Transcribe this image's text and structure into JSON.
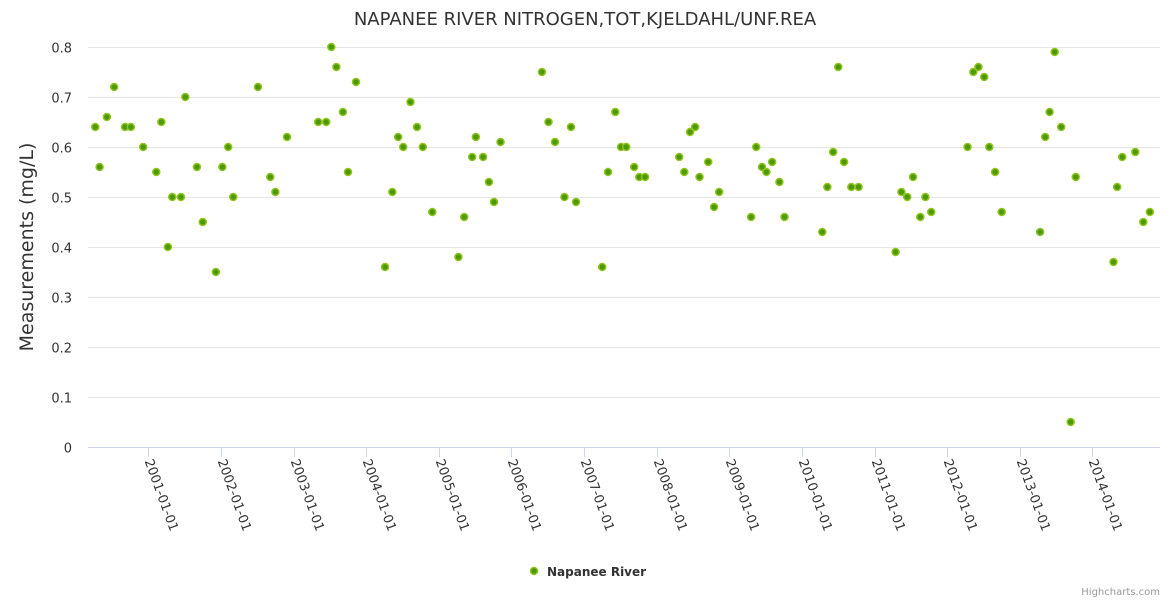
{
  "chart_data": {
    "type": "scatter",
    "title": "NAPANEE RIVER NITROGEN,TOT,KJELDAHL/UNF.REA",
    "xlabel": "",
    "ylabel": "Measurements (mg/L)",
    "xlim": [
      2000.17,
      2014.93
    ],
    "ylim": [
      0,
      0.8
    ],
    "yticks": [
      0,
      0.1,
      0.2,
      0.3,
      0.4,
      0.5,
      0.6,
      0.7,
      0.8
    ],
    "ytick_labels": [
      "0",
      "0.1",
      "0.2",
      "0.3",
      "0.4",
      "0.5",
      "0.6",
      "0.7",
      "0.8"
    ],
    "xticks": [
      2001,
      2002,
      2003,
      2004,
      2005,
      2006,
      2007,
      2008,
      2009,
      2010,
      2011,
      2012,
      2013,
      2014
    ],
    "xtick_labels": [
      "2001-01-01",
      "2002-01-01",
      "2003-01-01",
      "2004-01-01",
      "2005-01-01",
      "2006-01-01",
      "2007-01-01",
      "2008-01-01",
      "2009-01-01",
      "2010-01-01",
      "2011-01-01",
      "2012-01-01",
      "2013-01-01",
      "2014-01-01"
    ],
    "grid": true,
    "legend_position": "bottom-center",
    "series": [
      {
        "name": "Napanee River",
        "color": "#7cb5ec",
        "marker_fill": "#4c9a00",
        "marker_line": "#90c41f",
        "points": [
          [
            2000.27,
            0.64
          ],
          [
            2000.33,
            0.56
          ],
          [
            2000.43,
            0.66
          ],
          [
            2000.53,
            0.72
          ],
          [
            2000.68,
            0.64
          ],
          [
            2000.76,
            0.64
          ],
          [
            2000.93,
            0.6
          ],
          [
            2001.11,
            0.55
          ],
          [
            2001.18,
            0.65
          ],
          [
            2001.27,
            0.4
          ],
          [
            2001.33,
            0.5
          ],
          [
            2001.45,
            0.5
          ],
          [
            2001.51,
            0.7
          ],
          [
            2001.67,
            0.56
          ],
          [
            2001.75,
            0.45
          ],
          [
            2001.93,
            0.35
          ],
          [
            2002.02,
            0.56
          ],
          [
            2002.1,
            0.6
          ],
          [
            2002.17,
            0.5
          ],
          [
            2002.51,
            0.72
          ],
          [
            2002.68,
            0.54
          ],
          [
            2002.75,
            0.51
          ],
          [
            2002.91,
            0.62
          ],
          [
            2003.34,
            0.65
          ],
          [
            2003.45,
            0.65
          ],
          [
            2003.52,
            0.8
          ],
          [
            2003.59,
            0.76
          ],
          [
            2003.68,
            0.67
          ],
          [
            2003.75,
            0.55
          ],
          [
            2003.86,
            0.73
          ],
          [
            2004.26,
            0.36
          ],
          [
            2004.36,
            0.51
          ],
          [
            2004.44,
            0.62
          ],
          [
            2004.51,
            0.6
          ],
          [
            2004.61,
            0.69
          ],
          [
            2004.7,
            0.64
          ],
          [
            2004.78,
            0.6
          ],
          [
            2004.91,
            0.47
          ],
          [
            2005.27,
            0.38
          ],
          [
            2005.35,
            0.46
          ],
          [
            2005.46,
            0.58
          ],
          [
            2005.51,
            0.62
          ],
          [
            2005.61,
            0.58
          ],
          [
            2005.69,
            0.53
          ],
          [
            2005.76,
            0.49
          ],
          [
            2005.85,
            0.61
          ],
          [
            2006.42,
            0.75
          ],
          [
            2006.51,
            0.65
          ],
          [
            2006.6,
            0.61
          ],
          [
            2006.73,
            0.5
          ],
          [
            2006.82,
            0.64
          ],
          [
            2006.89,
            0.49
          ],
          [
            2007.25,
            0.36
          ],
          [
            2007.33,
            0.55
          ],
          [
            2007.43,
            0.67
          ],
          [
            2007.51,
            0.6
          ],
          [
            2007.58,
            0.6
          ],
          [
            2007.69,
            0.56
          ],
          [
            2007.76,
            0.54
          ],
          [
            2007.84,
            0.54
          ],
          [
            2008.31,
            0.58
          ],
          [
            2008.38,
            0.55
          ],
          [
            2008.46,
            0.63
          ],
          [
            2008.53,
            0.64
          ],
          [
            2008.59,
            0.54
          ],
          [
            2008.71,
            0.57
          ],
          [
            2008.79,
            0.48
          ],
          [
            2008.86,
            0.51
          ],
          [
            2009.3,
            0.46
          ],
          [
            2009.37,
            0.6
          ],
          [
            2009.45,
            0.56
          ],
          [
            2009.51,
            0.55
          ],
          [
            2009.59,
            0.57
          ],
          [
            2009.69,
            0.53
          ],
          [
            2009.76,
            0.46
          ],
          [
            2010.28,
            0.43
          ],
          [
            2010.35,
            0.52
          ],
          [
            2010.43,
            0.59
          ],
          [
            2010.5,
            0.76
          ],
          [
            2010.58,
            0.57
          ],
          [
            2010.68,
            0.52
          ],
          [
            2010.78,
            0.52
          ],
          [
            2011.29,
            0.39
          ],
          [
            2011.37,
            0.51
          ],
          [
            2011.45,
            0.5
          ],
          [
            2011.53,
            0.54
          ],
          [
            2011.63,
            0.46
          ],
          [
            2011.7,
            0.5
          ],
          [
            2011.78,
            0.47
          ],
          [
            2012.28,
            0.6
          ],
          [
            2012.36,
            0.75
          ],
          [
            2012.43,
            0.76
          ],
          [
            2012.51,
            0.74
          ],
          [
            2012.58,
            0.6
          ],
          [
            2012.66,
            0.55
          ],
          [
            2012.75,
            0.47
          ],
          [
            2013.28,
            0.43
          ],
          [
            2013.35,
            0.62
          ],
          [
            2013.41,
            0.67
          ],
          [
            2013.48,
            0.79
          ],
          [
            2013.57,
            0.64
          ],
          [
            2013.7,
            0.05
          ],
          [
            2013.77,
            0.54
          ],
          [
            2014.29,
            0.37
          ],
          [
            2014.34,
            0.52
          ],
          [
            2014.41,
            0.58
          ],
          [
            2014.59,
            0.59
          ],
          [
            2014.7,
            0.45
          ],
          [
            2014.79,
            0.47
          ]
        ]
      }
    ]
  },
  "credits": "Highcharts.com"
}
